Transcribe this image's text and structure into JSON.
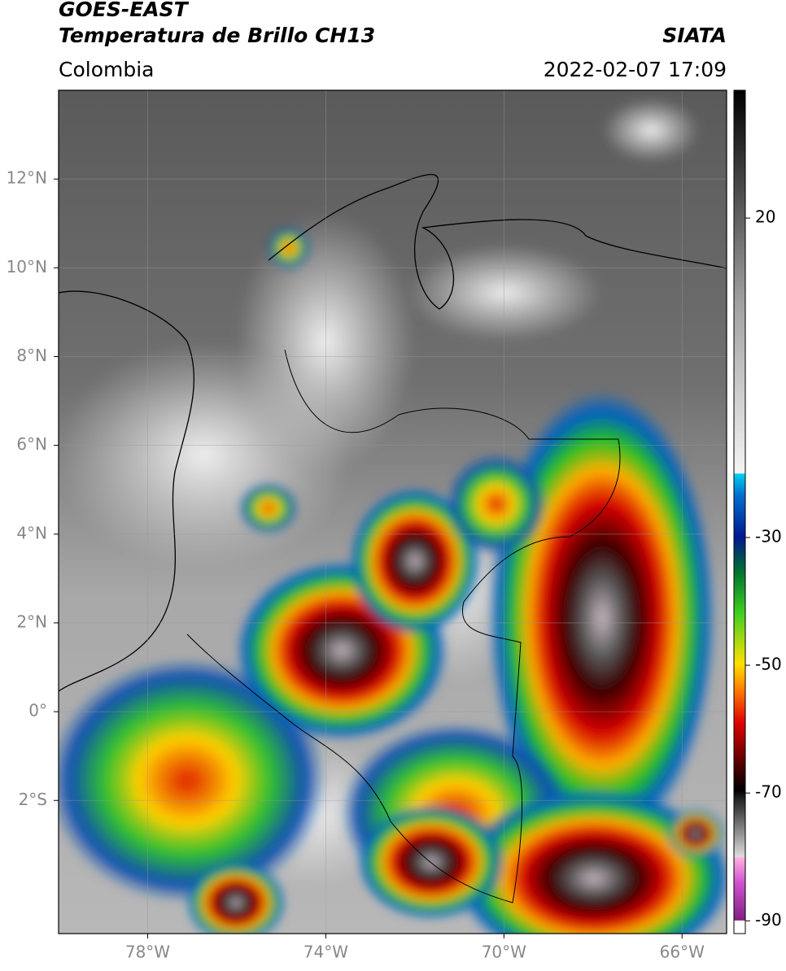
{
  "header": {
    "satellite": "GOES-EAST",
    "product": "Temperatura de Brillo CH13",
    "source": "SIATA",
    "region": "Colombia",
    "datetime": "2022-02-07 17:09"
  },
  "map": {
    "xlim": [
      -80,
      -65
    ],
    "ylim": [
      -5,
      14
    ],
    "xticks": [
      {
        "value": -78,
        "label": "78°W"
      },
      {
        "value": -74,
        "label": "74°W"
      },
      {
        "value": -70,
        "label": "70°W"
      },
      {
        "value": -66,
        "label": "66°W"
      }
    ],
    "yticks": [
      {
        "value": 12,
        "label": "12°N"
      },
      {
        "value": 10,
        "label": "10°N"
      },
      {
        "value": 8,
        "label": "8°N"
      },
      {
        "value": 6,
        "label": "6°N"
      },
      {
        "value": 4,
        "label": "4°N"
      },
      {
        "value": 2,
        "label": "2°N"
      },
      {
        "value": 0,
        "label": "0°"
      },
      {
        "value": -2,
        "label": "2°S"
      }
    ],
    "grid": true
  },
  "colorbar": {
    "lim": [
      -92,
      40
    ],
    "ticks": [
      20,
      -30,
      -50,
      -70,
      -90
    ]
  }
}
